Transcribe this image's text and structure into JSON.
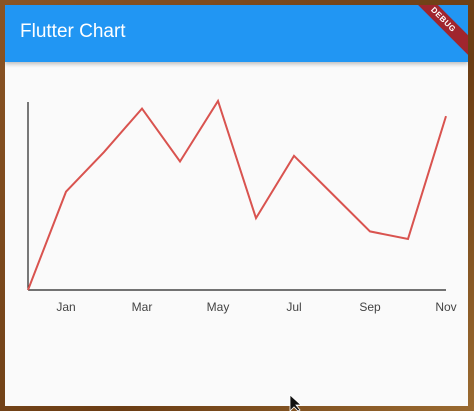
{
  "app_bar": {
    "title": "Flutter Chart",
    "banner": "DEBUG"
  },
  "chart_data": {
    "type": "line",
    "categories": [
      null,
      "Jan",
      null,
      "Mar",
      null,
      "May",
      null,
      "Jul",
      null,
      "Sep",
      null,
      "Nov"
    ],
    "values": [
      0,
      52,
      73,
      96,
      68,
      100,
      38,
      71,
      51,
      31,
      27,
      92
    ],
    "color": "#d9534f",
    "ylim": [
      0,
      100
    ]
  }
}
